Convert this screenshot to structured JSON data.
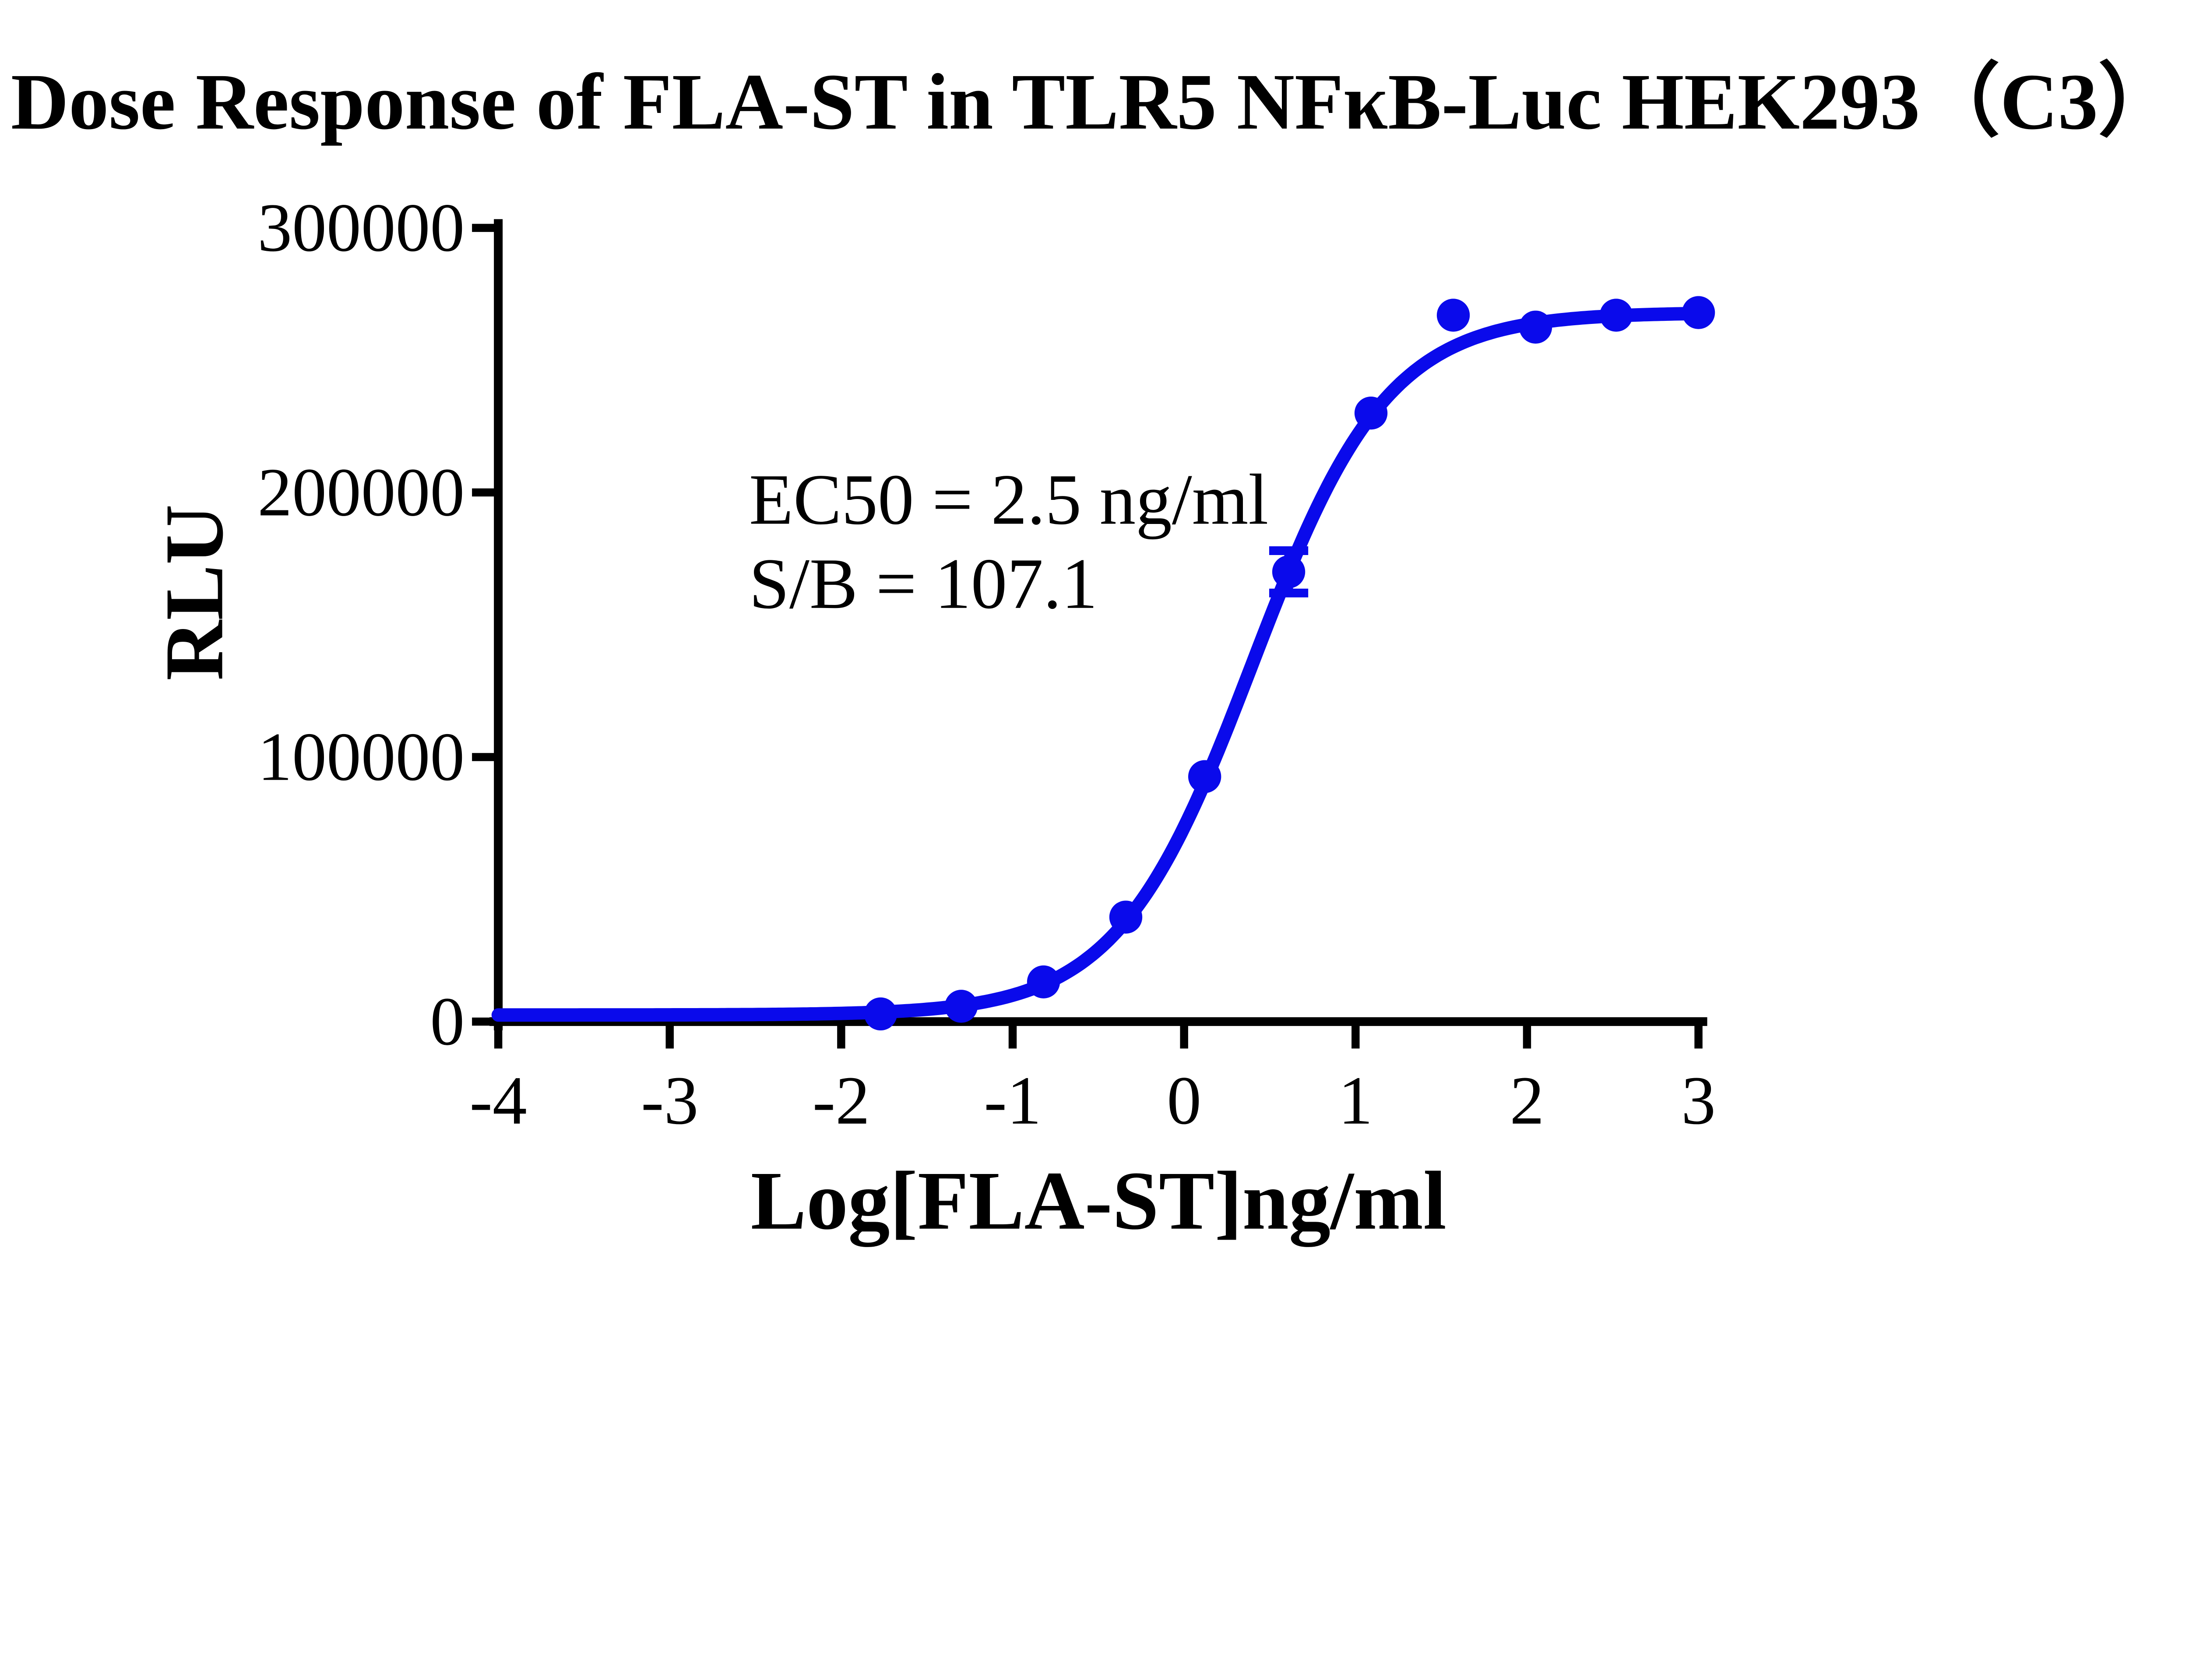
{
  "figure": {
    "background": "#FFFFFF",
    "text_color": "#000000"
  },
  "chart_data": {
    "type": "scatter",
    "title": "Dose Response of FLA-ST in TLR5 NFκB-Luc HEK293（C3）",
    "xlabel": "Log[FLA-ST]ng/ml",
    "ylabel": "RLU",
    "xlim": [
      -4,
      3
    ],
    "ylim": [
      0,
      300000
    ],
    "x_ticks": [
      -4,
      -3,
      -2,
      -1,
      0,
      1,
      2,
      3
    ],
    "x_tick_labels": [
      "-4",
      "-3",
      "-2",
      "-1",
      "0",
      "1",
      "2",
      "3"
    ],
    "y_ticks": [
      0,
      100000,
      200000,
      300000
    ],
    "y_tick_labels": [
      "0",
      "100000",
      "200000",
      "300000"
    ],
    "grid": false,
    "legend_position": "none",
    "axis_color": "#000000",
    "annotations": [
      "EC50 = 2.5 ng/ml",
      "S/B = 107.1"
    ],
    "series": [
      {
        "name": "FLA-ST",
        "color": "#0A0AEB",
        "marker": "circle",
        "points": [
          {
            "x": -1.77,
            "y": 2900
          },
          {
            "x": -1.3,
            "y": 5800
          },
          {
            "x": -0.82,
            "y": 15000
          },
          {
            "x": -0.34,
            "y": 39500
          },
          {
            "x": 0.12,
            "y": 92600
          },
          {
            "x": 0.61,
            "y": 170000,
            "y_error": 8000
          },
          {
            "x": 1.09,
            "y": 230000
          },
          {
            "x": 1.57,
            "y": 267000
          },
          {
            "x": 2.05,
            "y": 262500
          },
          {
            "x": 2.52,
            "y": 267000
          },
          {
            "x": 3.0,
            "y": 268000
          }
        ],
        "fit_curve": {
          "model": "4PL",
          "bottom": 2500,
          "top": 268000,
          "logEC50": 0.398,
          "hill_slope": 1.1
        },
        "ec50": "2.5 ng/ml",
        "signal_to_background": "107.1"
      }
    ]
  }
}
